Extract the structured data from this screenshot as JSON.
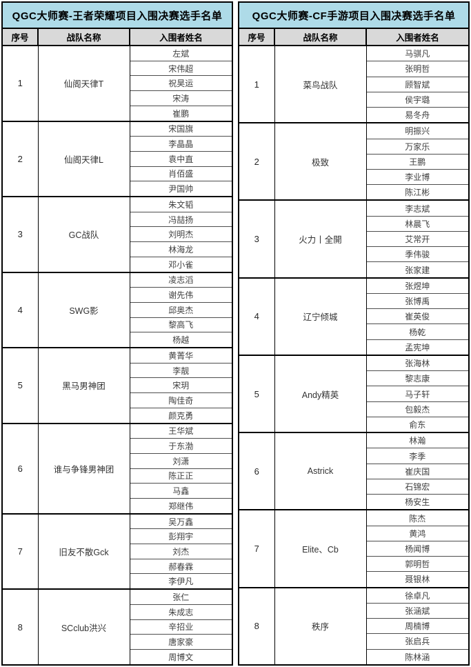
{
  "tables": [
    {
      "title": "QGC大师赛-王者荣耀项目入围决赛选手名单",
      "columns": [
        "序号",
        "战队名称",
        "入围者姓名"
      ],
      "teams": [
        {
          "no": "1",
          "team": "仙阁天律T",
          "players": [
            "左斌",
            "宋伟超",
            "祝昊运",
            "宋涛",
            "崔鹏"
          ]
        },
        {
          "no": "2",
          "team": "仙阁天律L",
          "players": [
            "宋国旗",
            "李晶晶",
            "袁中直",
            "肖佰盛",
            "尹国帅"
          ]
        },
        {
          "no": "3",
          "team": "GC战队",
          "players": [
            "朱文韬",
            "冯喆扬",
            "刘明杰",
            "林海龙",
            "邓小雀"
          ]
        },
        {
          "no": "4",
          "team": "SWG影",
          "players": [
            "凌志滔",
            "谢先伟",
            "邱奥杰",
            "黎高飞",
            "杨越"
          ]
        },
        {
          "no": "5",
          "team": "黑马男神团",
          "players": [
            "黄菁华",
            "李靓",
            "宋玥",
            "陶佳奇",
            "颜克勇"
          ]
        },
        {
          "no": "6",
          "team": "谁与争锋男神团",
          "players": [
            "王华斌",
            "于东渤",
            "刘潇",
            "陈正正",
            "马鑫",
            "郑继伟"
          ]
        },
        {
          "no": "7",
          "team": "旧友不散Gck",
          "players": [
            "吴万鑫",
            "彭翔宇",
            "刘杰",
            "郝春霖",
            "李伊凡"
          ]
        },
        {
          "no": "8",
          "team": "SCclub洪兴",
          "players": [
            "张仁",
            "朱成志",
            "辛招业",
            "唐家豪",
            "周博文"
          ]
        }
      ]
    },
    {
      "title": "QGC大师赛-CF手游项目入围决赛选手名单",
      "columns": [
        "序号",
        "战队名称",
        "入围者姓名"
      ],
      "teams": [
        {
          "no": "1",
          "team": "菜鸟战队",
          "players": [
            "马骐凡",
            "张明哲",
            "顾智斌",
            "侯宇璐",
            "易冬舟"
          ]
        },
        {
          "no": "2",
          "team": "极致",
          "players": [
            "明振兴",
            "万家乐",
            "王鹏",
            "李业博",
            "陈江彬"
          ]
        },
        {
          "no": "3",
          "team": "火力丨全開",
          "players": [
            "李志斌",
            "林晨飞",
            "艾常开",
            "季伟骏",
            "张家建"
          ]
        },
        {
          "no": "4",
          "team": "辽宁倾城",
          "players": [
            "张煜坤",
            "张博禹",
            "崔英俊",
            "杨乾",
            "孟宪坤"
          ]
        },
        {
          "no": "5",
          "team": "Andy精英",
          "players": [
            "张海林",
            "黎志康",
            "马子轩",
            "包毅杰",
            "俞东"
          ]
        },
        {
          "no": "6",
          "team": "Astrick",
          "players": [
            "林瀚",
            "李季",
            "崔庆国",
            "石锦宏",
            "杨安生"
          ]
        },
        {
          "no": "7",
          "team": "Elite、Cb",
          "players": [
            "陈杰",
            "黄鸿",
            "杨闻博",
            "郭明哲",
            "聂银林"
          ]
        },
        {
          "no": "8",
          "team": "秩序",
          "players": [
            "徐卓凡",
            "张涵斌",
            "周楠博",
            "张启兵",
            "陈林涵"
          ]
        }
      ]
    }
  ],
  "colors": {
    "title_bg": "#aedbe8",
    "header_bg": "#d9d9d9",
    "border": "#000000",
    "text": "#404040"
  }
}
